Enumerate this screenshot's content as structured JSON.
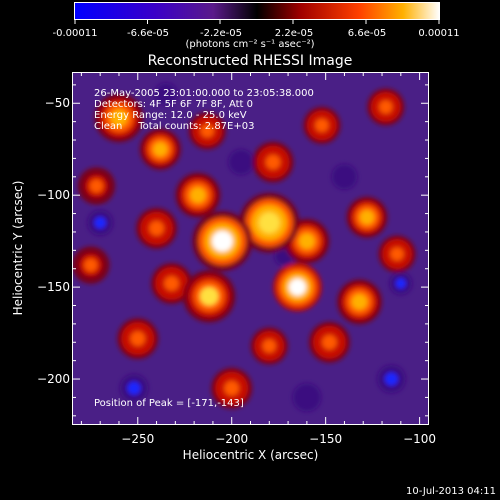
{
  "colorbar": {
    "ticks": [
      "-0.00011",
      "-6.6e-05",
      "-2.2e-05",
      "2.2e-05",
      "6.6e-05",
      "0.00011"
    ],
    "units": "(photons cm⁻² s⁻¹ asec⁻²)"
  },
  "title": "Reconstructed RHESSI Image",
  "info": {
    "line1": "26-May-2005 23:01:00.000 to 23:05:38.000",
    "line2": "Detectors: 4F 5F 6F 7F 8F, Att 0",
    "line3": "Energy Range: 12.0 - 25.0 keV",
    "line4": "Clean     Total counts: 2.87E+03"
  },
  "peak_label": "Position of Peak = [-171,-143]",
  "timestamp": "10-Jul-2013 04:11",
  "chart_data": {
    "type": "heatmap",
    "title": "Reconstructed RHESSI Image",
    "xlabel": "Heliocentric X (arcsec)",
    "ylabel": "Heliocentric Y (arcsec)",
    "xlim": [
      -285,
      -95
    ],
    "ylim": [
      -225,
      -33
    ],
    "xticks": [
      -250,
      -200,
      -150,
      -100
    ],
    "yticks": [
      -50,
      -100,
      -150,
      -200
    ],
    "colorbar_range": [
      -0.00011,
      0.00011
    ],
    "peak": [
      -171,
      -143
    ],
    "blobs": [
      {
        "x": -180,
        "y": -115,
        "a": 0.9,
        "r": 16
      },
      {
        "x": -205,
        "y": -125,
        "a": 0.95,
        "r": 16
      },
      {
        "x": -212,
        "y": -155,
        "a": 0.85,
        "r": 14
      },
      {
        "x": -165,
        "y": -150,
        "a": 1.0,
        "r": 13
      },
      {
        "x": -160,
        "y": -125,
        "a": 0.7,
        "r": 12
      },
      {
        "x": -218,
        "y": -100,
        "a": 0.7,
        "r": 12
      },
      {
        "x": -240,
        "y": -118,
        "a": 0.5,
        "r": 11
      },
      {
        "x": -232,
        "y": -148,
        "a": 0.55,
        "r": 11
      },
      {
        "x": -260,
        "y": -58,
        "a": 0.75,
        "r": 13
      },
      {
        "x": -238,
        "y": -75,
        "a": 0.6,
        "r": 11
      },
      {
        "x": -213,
        "y": -65,
        "a": 0.55,
        "r": 10
      },
      {
        "x": -178,
        "y": -82,
        "a": 0.55,
        "r": 11
      },
      {
        "x": -152,
        "y": -62,
        "a": 0.5,
        "r": 10
      },
      {
        "x": -118,
        "y": -52,
        "a": 0.55,
        "r": 10
      },
      {
        "x": -128,
        "y": -112,
        "a": 0.6,
        "r": 11
      },
      {
        "x": -112,
        "y": -132,
        "a": 0.5,
        "r": 10
      },
      {
        "x": -132,
        "y": -158,
        "a": 0.6,
        "r": 12
      },
      {
        "x": -148,
        "y": -180,
        "a": 0.45,
        "r": 11
      },
      {
        "x": -180,
        "y": -182,
        "a": 0.5,
        "r": 10
      },
      {
        "x": -200,
        "y": -205,
        "a": 0.45,
        "r": 11
      },
      {
        "x": -250,
        "y": -178,
        "a": 0.45,
        "r": 11
      },
      {
        "x": -275,
        "y": -138,
        "a": 0.4,
        "r": 10
      },
      {
        "x": -272,
        "y": -95,
        "a": 0.4,
        "r": 10
      },
      {
        "x": -172,
        "y": -133,
        "a": -0.3,
        "r": 7
      },
      {
        "x": -200,
        "y": -135,
        "a": -0.25,
        "r": 7
      },
      {
        "x": -270,
        "y": -115,
        "a": -0.35,
        "r": 9
      },
      {
        "x": -252,
        "y": -205,
        "a": -0.35,
        "r": 10
      },
      {
        "x": -110,
        "y": -148,
        "a": -0.4,
        "r": 8
      },
      {
        "x": -195,
        "y": -82,
        "a": -0.3,
        "r": 9
      },
      {
        "x": -140,
        "y": -90,
        "a": -0.3,
        "r": 9
      },
      {
        "x": -160,
        "y": -210,
        "a": -0.3,
        "r": 10
      },
      {
        "x": -115,
        "y": -200,
        "a": -0.35,
        "r": 10
      },
      {
        "x": -235,
        "y": -45,
        "a": -0.25,
        "r": 8
      }
    ]
  }
}
